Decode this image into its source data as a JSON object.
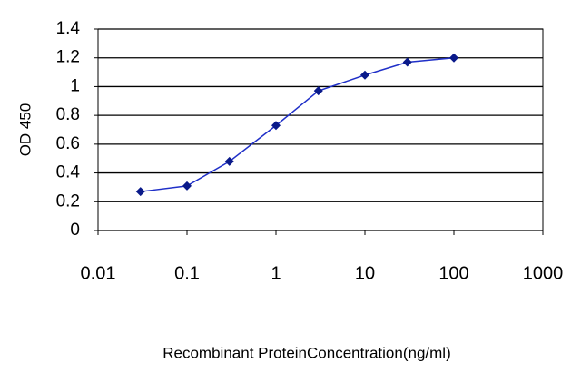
{
  "chart_data": {
    "type": "line",
    "x_label": "Recombinant ProteinConcentration(ng/ml)",
    "y_label": "OD 450",
    "x_scale": "log",
    "x": [
      0.03,
      0.1,
      0.3,
      1,
      3,
      10,
      30,
      100
    ],
    "series": [
      {
        "color": "#1f2fc8",
        "marker_color": "#0a1a8a",
        "values": [
          0.27,
          0.31,
          0.48,
          0.73,
          0.97,
          1.08,
          1.17,
          1.2
        ]
      }
    ],
    "xlim": [
      0.01,
      1000
    ],
    "xticks": [
      0.01,
      0.1,
      1,
      10,
      100,
      1000
    ],
    "ylim": [
      0,
      1.4
    ],
    "yticks": [
      0,
      0.2,
      0.4,
      0.6,
      0.8,
      1,
      1.2,
      1.4
    ],
    "grid": true
  }
}
